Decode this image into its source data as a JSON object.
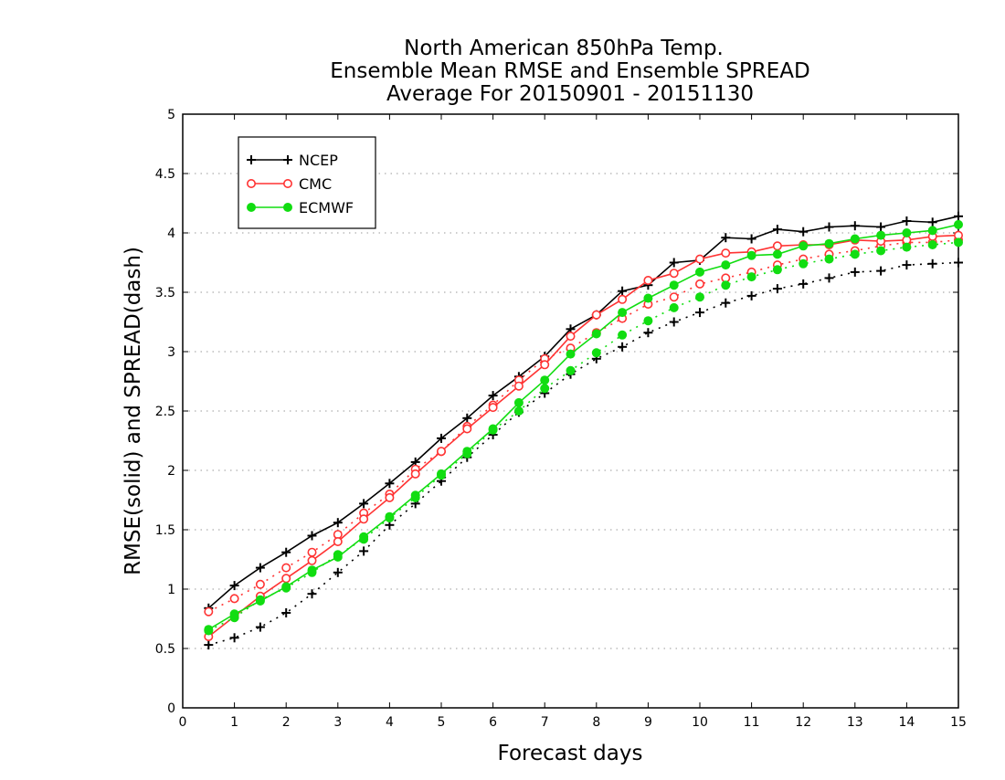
{
  "chart_data": {
    "type": "line",
    "title_lines": [
      "North American 850hPa Temp.",
      "Ensemble Mean RMSE and Ensemble SPREAD",
      "Average For 20150901 - 20151130"
    ],
    "xlabel": "Forecast days",
    "ylabel": "RMSE(solid) and SPREAD(dash)",
    "xlim": [
      0,
      15
    ],
    "ylim": [
      0,
      5
    ],
    "xticks": [
      "0",
      "1",
      "2",
      "3",
      "4",
      "5",
      "6",
      "7",
      "8",
      "9",
      "10",
      "11",
      "12",
      "13",
      "14",
      "15"
    ],
    "yticks": [
      "0",
      "0.5",
      "1",
      "1.5",
      "2",
      "2.5",
      "3",
      "3.5",
      "4",
      "4.5",
      "5"
    ],
    "grid": "horizontal dotted",
    "legend_position": "top-left",
    "x": [
      0.5,
      1,
      1.5,
      2,
      2.5,
      3,
      3.5,
      4,
      4.5,
      5,
      5.5,
      6,
      6.5,
      7,
      7.5,
      8,
      8.5,
      9,
      9.5,
      10,
      10.5,
      11,
      11.5,
      12,
      12.5,
      13,
      13.5,
      14,
      14.5,
      15
    ],
    "series": [
      {
        "name": "NCEP",
        "color": "#000000",
        "marker": "plus",
        "rmse": [
          0.84,
          1.03,
          1.18,
          1.31,
          1.45,
          1.56,
          1.72,
          1.89,
          2.07,
          2.27,
          2.44,
          2.63,
          2.79,
          2.96,
          3.19,
          3.31,
          3.51,
          3.56,
          3.75,
          3.77,
          3.96,
          3.95,
          4.03,
          4.01,
          4.05,
          4.06,
          4.05,
          4.1,
          4.09,
          4.14
        ],
        "spread": [
          0.53,
          0.59,
          0.68,
          0.8,
          0.96,
          1.14,
          1.32,
          1.54,
          1.72,
          1.91,
          2.11,
          2.3,
          2.49,
          2.65,
          2.81,
          2.94,
          3.04,
          3.16,
          3.25,
          3.33,
          3.41,
          3.47,
          3.53,
          3.57,
          3.62,
          3.67,
          3.68,
          3.73,
          3.74,
          3.75
        ]
      },
      {
        "name": "CMC",
        "color": "#ff3333",
        "marker": "open-circle",
        "rmse": [
          0.6,
          0.77,
          0.94,
          1.09,
          1.24,
          1.4,
          1.59,
          1.77,
          1.97,
          2.16,
          2.35,
          2.53,
          2.71,
          2.89,
          3.13,
          3.31,
          3.44,
          3.6,
          3.66,
          3.78,
          3.83,
          3.84,
          3.89,
          3.9,
          3.9,
          3.94,
          3.93,
          3.94,
          3.97,
          3.98
        ],
        "spread": [
          0.81,
          0.92,
          1.04,
          1.18,
          1.31,
          1.46,
          1.64,
          1.8,
          2.01,
          2.16,
          2.37,
          2.55,
          2.76,
          2.94,
          3.03,
          3.16,
          3.28,
          3.4,
          3.46,
          3.57,
          3.62,
          3.67,
          3.73,
          3.78,
          3.82,
          3.85,
          3.89,
          3.92,
          3.92,
          3.94
        ]
      },
      {
        "name": "ECMWF",
        "color": "#11dd11",
        "marker": "filled-circle",
        "rmse": [
          0.66,
          0.79,
          0.9,
          1.02,
          1.16,
          1.27,
          1.44,
          1.61,
          1.79,
          1.97,
          2.16,
          2.35,
          2.57,
          2.76,
          2.98,
          3.15,
          3.33,
          3.45,
          3.56,
          3.67,
          3.73,
          3.81,
          3.82,
          3.89,
          3.91,
          3.95,
          3.98,
          4.0,
          4.02,
          4.07
        ],
        "spread": [
          0.65,
          0.76,
          0.91,
          1.01,
          1.14,
          1.29,
          1.42,
          1.6,
          1.77,
          1.96,
          2.14,
          2.34,
          2.5,
          2.69,
          2.84,
          2.99,
          3.14,
          3.26,
          3.37,
          3.46,
          3.56,
          3.63,
          3.69,
          3.74,
          3.78,
          3.82,
          3.85,
          3.88,
          3.9,
          3.92
        ]
      }
    ]
  }
}
